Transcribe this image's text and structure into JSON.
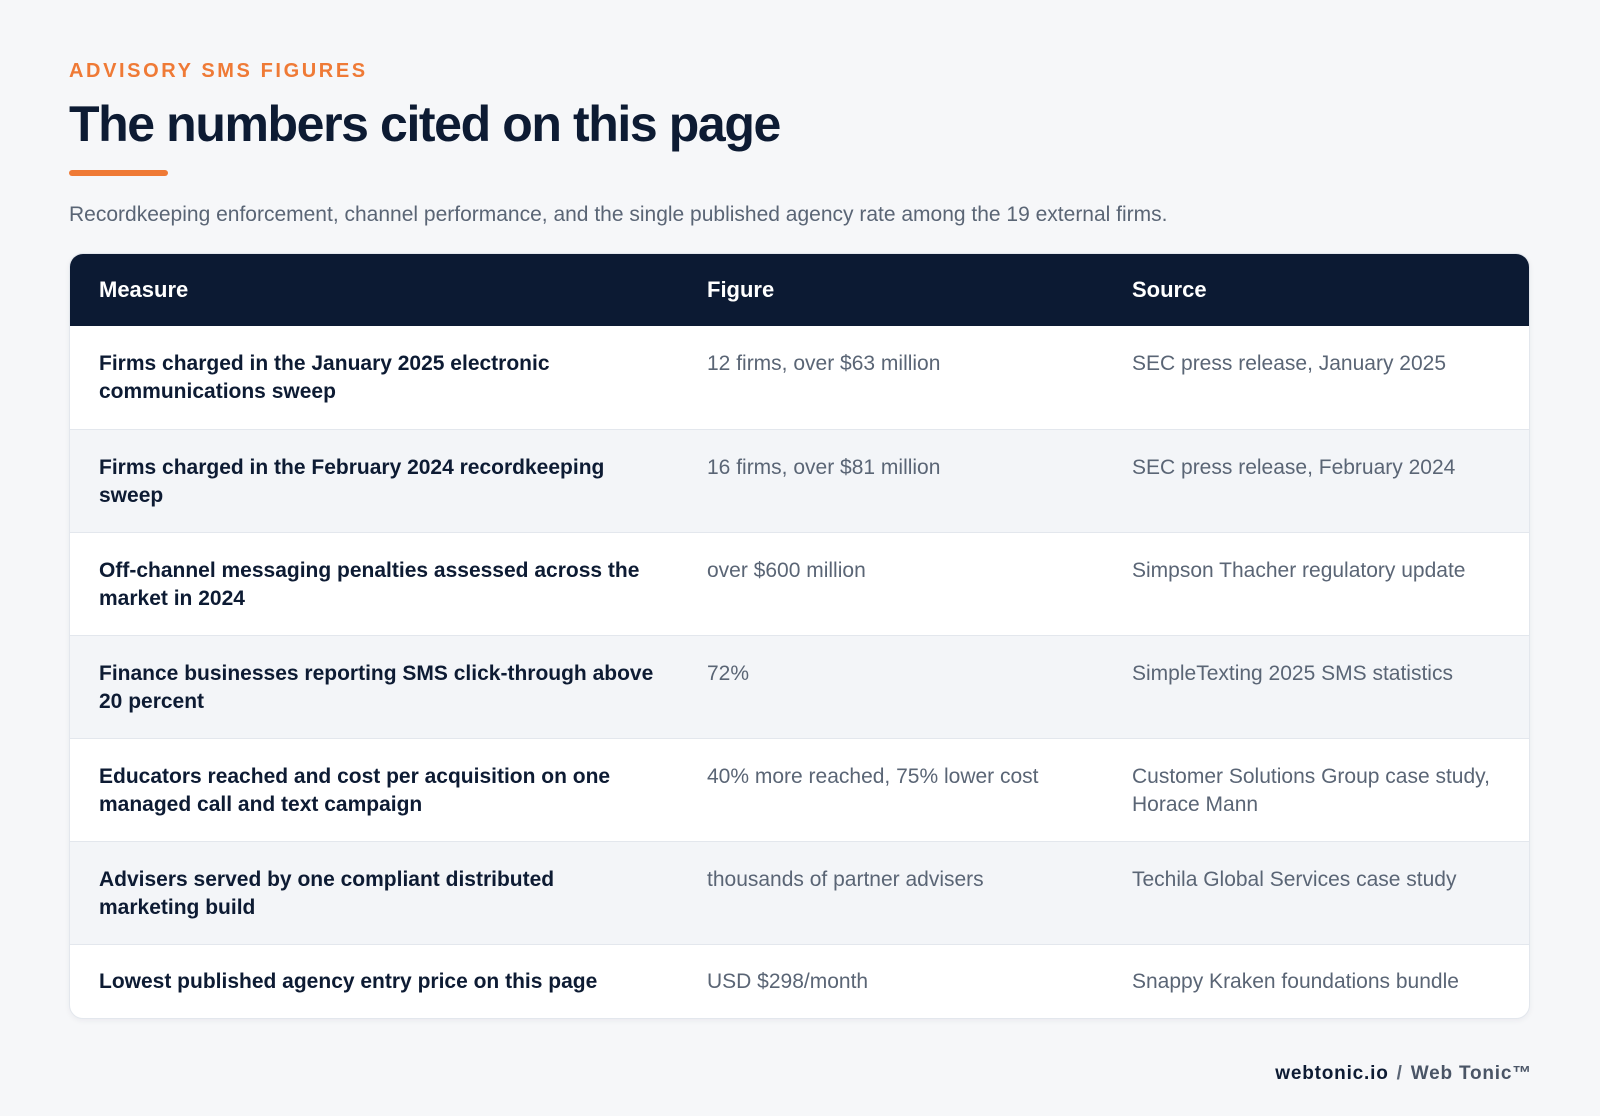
{
  "header": {
    "eyebrow": "ADVISORY SMS FIGURES",
    "title": "The numbers cited on this page",
    "subtitle": "Recordkeeping enforcement, channel performance, and the single published agency rate among the 19 external firms."
  },
  "table": {
    "columns": [
      "Measure",
      "Figure",
      "Source"
    ],
    "rows": [
      {
        "measure": "Firms charged in the January 2025 electronic communications sweep",
        "figure": "12 firms, over $63 million",
        "source": "SEC press release, January 2025"
      },
      {
        "measure": "Firms charged in the February 2024 recordkeeping sweep",
        "figure": "16 firms, over $81 million",
        "source": "SEC press release, February 2024"
      },
      {
        "measure": "Off-channel messaging penalties assessed across the market in 2024",
        "figure": "over $600 million",
        "source": "Simpson Thacher regulatory update"
      },
      {
        "measure": "Finance businesses reporting SMS click-through above 20 percent",
        "figure": "72%",
        "source": "SimpleTexting 2025 SMS statistics"
      },
      {
        "measure": "Educators reached and cost per acquisition on one managed call and text campaign",
        "figure": "40% more reached, 75% lower cost",
        "source": "Customer Solutions Group case study, Horace Mann"
      },
      {
        "measure": "Advisers served by one compliant distributed marketing build",
        "figure": "thousands of partner advisers",
        "source": "Techila Global Services case study"
      },
      {
        "measure": "Lowest published agency entry price on this page",
        "figure": "USD $298/month",
        "source": "Snappy Kraken foundations bundle"
      }
    ]
  },
  "footer": {
    "domain": "webtonic.io",
    "separator": "/",
    "brand": "Web Tonic™"
  },
  "colors": {
    "accent": "#ef7a36",
    "header_bg": "#0c1a33",
    "text_dark": "#0d1b33",
    "text_muted": "#5a6575",
    "page_bg": "#f6f7f9"
  }
}
